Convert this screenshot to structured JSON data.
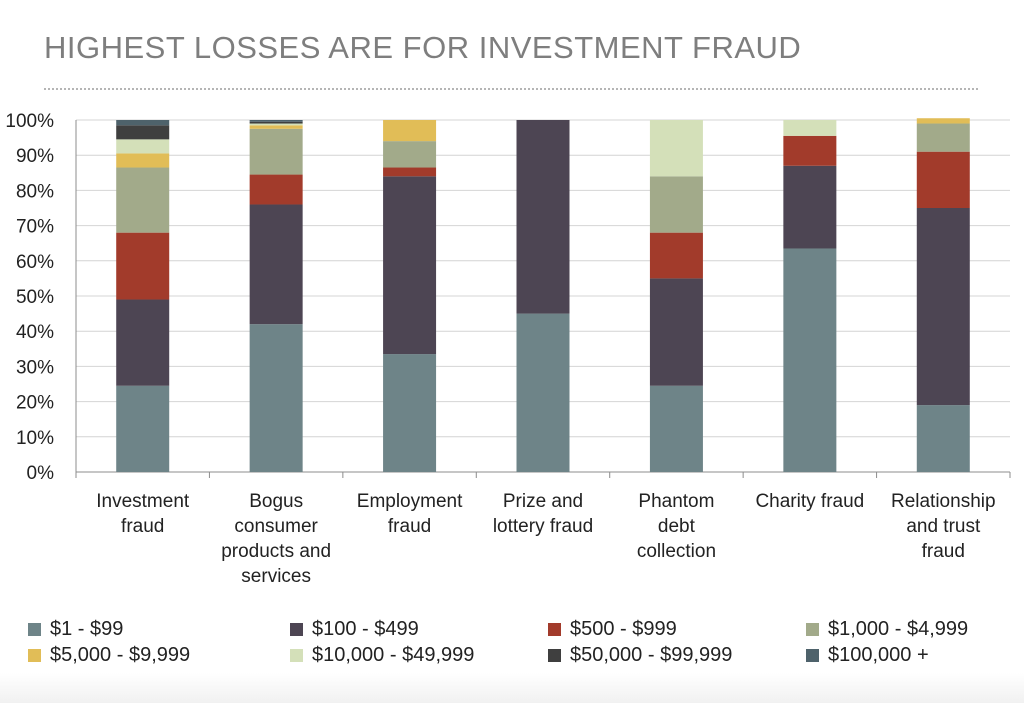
{
  "page_title": "HIGHEST LOSSES ARE FOR INVESTMENT FRAUD",
  "chart_data": {
    "type": "bar",
    "stacked": true,
    "categories": [
      [
        "Investment",
        "fraud"
      ],
      [
        "Bogus",
        "consumer",
        "products and",
        "services"
      ],
      [
        "Employment",
        "fraud"
      ],
      [
        "Prize and",
        "lottery fraud"
      ],
      [
        "Phantom",
        "debt",
        "collection"
      ],
      [
        "Charity fraud"
      ],
      [
        "Relationship",
        "and trust",
        "fraud"
      ]
    ],
    "y_tick_labels": [
      "0%",
      "10%",
      "20%",
      "30%",
      "40%",
      "50%",
      "60%",
      "70%",
      "80%",
      "90%",
      "100%"
    ],
    "ylim": [
      0,
      100
    ],
    "grid": true,
    "legend_position": "bottom",
    "series": [
      {
        "name": "$1 - $99",
        "color": "#6e8488",
        "values": [
          24.5,
          42,
          33.5,
          45,
          24.5,
          63.5,
          19
        ]
      },
      {
        "name": "$100 - $499",
        "color": "#4d4553",
        "values": [
          24.5,
          34,
          50.5,
          55,
          30.5,
          23.5,
          56
        ]
      },
      {
        "name": "$500 - $999",
        "color": "#a23b2b",
        "values": [
          19,
          8.5,
          2.5,
          0,
          13,
          8.5,
          16
        ]
      },
      {
        "name": "$1,000 - $4,999",
        "color": "#a2aa8a",
        "values": [
          18.5,
          13,
          7.5,
          0,
          16,
          0,
          8
        ]
      },
      {
        "name": "$5,000 - $9,999",
        "color": "#e1bd57",
        "values": [
          4,
          1,
          6,
          0,
          0,
          0,
          1.5
        ]
      },
      {
        "name": "$10,000 - $49,999",
        "color": "#d4e0b9",
        "values": [
          4,
          0.5,
          0,
          0,
          16,
          4.5,
          0
        ]
      },
      {
        "name": "$50,000 - $99,999",
        "color": "#3f3f3f",
        "values": [
          4,
          0.5,
          0,
          0,
          0,
          0,
          0
        ]
      },
      {
        "name": "$100,000 +",
        "color": "#4e626b",
        "values": [
          1.5,
          0.5,
          0,
          0,
          0,
          0,
          0
        ]
      }
    ]
  }
}
